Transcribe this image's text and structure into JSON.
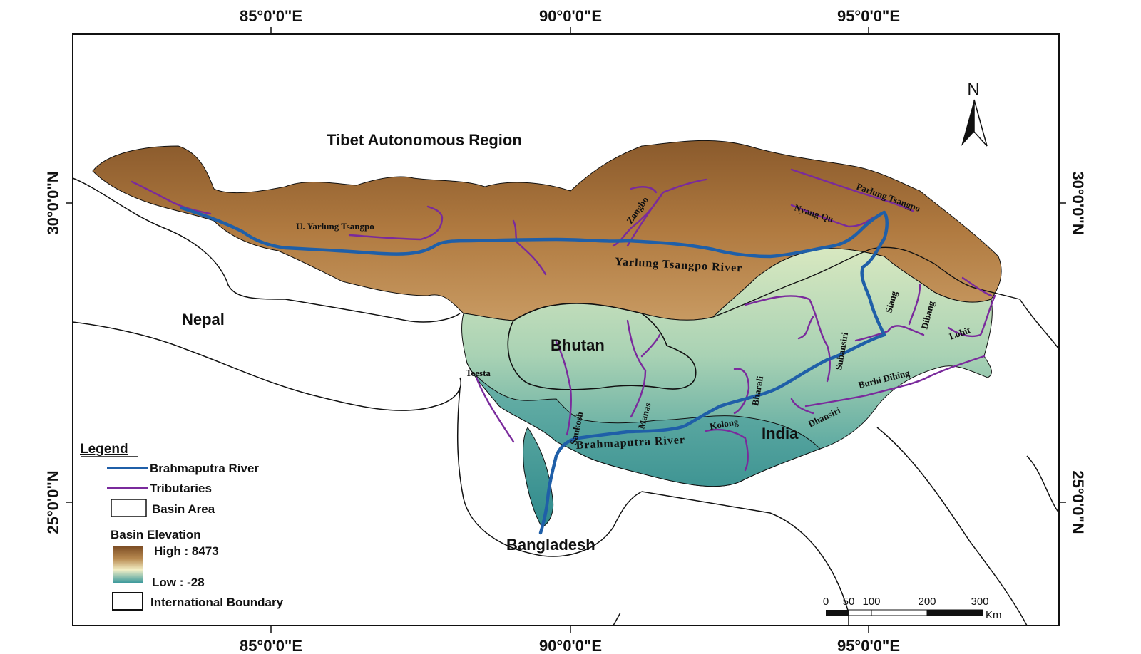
{
  "map": {
    "longitude_labels": [
      "85°0'0\"E",
      "90°0'0\"E",
      "95°0'0\"E"
    ],
    "latitude_labels": [
      "30°0'0\"N",
      "25°0'0\"N"
    ],
    "north_arrow": "N",
    "region_title": "Tibet Autonomous Region",
    "countries": [
      "Nepal",
      "Bhutan",
      "India",
      "Bangladesh"
    ],
    "rivers": {
      "main_upper": "Yarlung Tsangpo River",
      "main_lower": "Brahmaputra River",
      "tributaries": [
        "U. Yarlung Tsangpo",
        "Zangbo",
        "Nyang Qu",
        "Parlung Tsangpo",
        "Siang",
        "Dibang",
        "Lohit",
        "Subansiri",
        "Bharali",
        "Burhi Dihing",
        "Dhansiri",
        "Kolong",
        "Manas",
        "Sankosh",
        "Teesta"
      ]
    },
    "colors": {
      "main_river": "#1f5fa8",
      "tributary": "#7a2a9c",
      "elevation_high": "#8b5a2b",
      "elevation_mid": "#f5f0c8",
      "elevation_low": "#3c9a9a"
    }
  },
  "legend": {
    "title": "Legend",
    "items": [
      "Brahmaputra River",
      "Tributaries",
      "Basin Area"
    ],
    "elevation_title": "Basin Elevation",
    "high_label": "High : 8473",
    "low_label": "Low : -28",
    "boundary_label": "International Boundary"
  },
  "scale_bar": {
    "ticks": [
      "0",
      "50",
      "100",
      "200",
      "300"
    ],
    "unit": "Km"
  }
}
